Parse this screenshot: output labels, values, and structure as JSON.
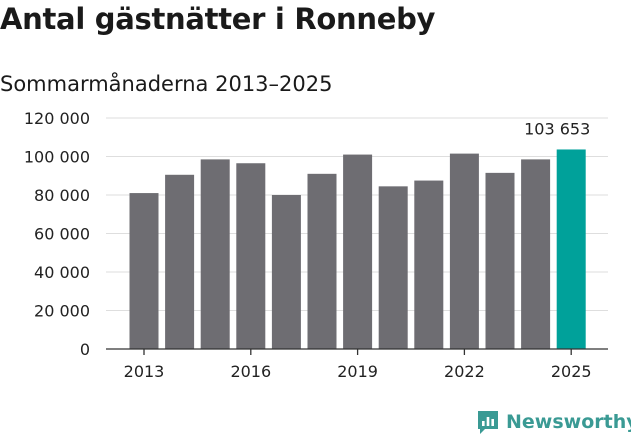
{
  "header": {
    "title": "Antal gästnätter i Ronneby",
    "subtitle": "Sommarmånaderna 2013–2025"
  },
  "brand": {
    "name": "Newsworthy",
    "icon": "newsworthy-logo-icon"
  },
  "colors": {
    "bar": "#6e6d72",
    "highlight": "#00a19a",
    "grid": "#dedede",
    "brand": "#3a9a94"
  },
  "chart_data": {
    "type": "bar",
    "categories": [
      "2013",
      "2014",
      "2015",
      "2016",
      "2017",
      "2018",
      "2019",
      "2020",
      "2021",
      "2022",
      "2023",
      "2024",
      "2025"
    ],
    "values": [
      81000,
      90500,
      98500,
      96500,
      80000,
      91000,
      101000,
      84500,
      87500,
      101500,
      91500,
      98500,
      103653
    ],
    "highlight_index": 12,
    "highlight_label": "103 653",
    "x_tick_labels": [
      "2013",
      "2016",
      "2019",
      "2022",
      "2025"
    ],
    "y_ticks": [
      0,
      20000,
      40000,
      60000,
      80000,
      100000,
      120000
    ],
    "y_tick_labels": [
      "0",
      "20 000",
      "40 000",
      "60 000",
      "80 000",
      "100 000",
      "120 000"
    ],
    "ylim": [
      0,
      120000
    ],
    "grid": true,
    "legend": "none",
    "xlabel": "",
    "ylabel": ""
  }
}
